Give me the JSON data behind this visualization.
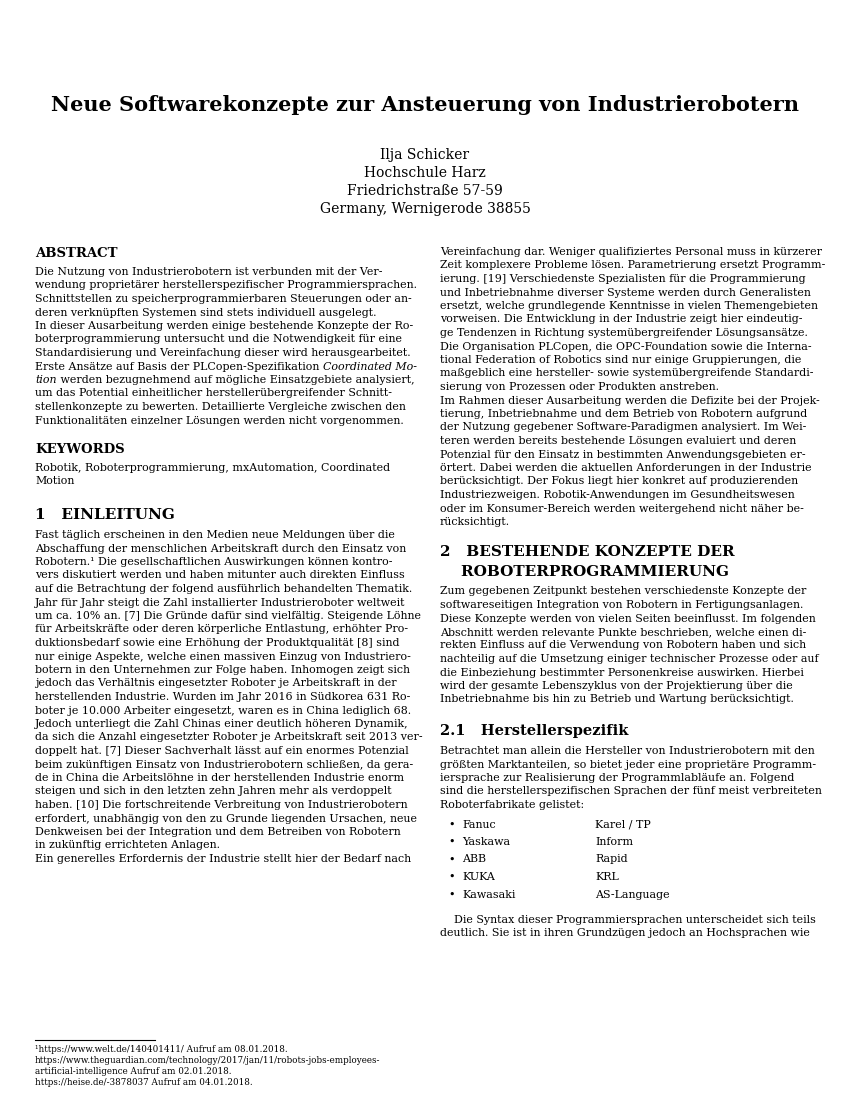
{
  "title": "Neue Softwarekonzepte zur Ansteuerung von Industrierobotern",
  "author_lines": [
    "Ilja Schicker",
    "Hochschule Harz",
    "Friedrichstraße 57-59",
    "Germany, Wernigerode 38855"
  ],
  "background_color": "#ffffff",
  "text_color": "#000000",
  "abstract_heading": "ABSTRACT",
  "left_abstract_lines": [
    "Die Nutzung von Industrierobotern ist verbunden mit der Ver-",
    "wendung proprietärer herstellerspezifischer Programmiersprachen.",
    "Schnittstellen zu speicherprogrammierbaren Steuerungen oder an-",
    "deren verknüpften Systemen sind stets individuell ausgelegt.",
    "In dieser Ausarbeitung werden einige bestehende Konzepte der Ro-",
    "boterprogrammierung untersucht und die Notwendigkeit für eine",
    "Standardisierung und Vereinfachung dieser wird herausgearbeitet.",
    "Erste Ansätze auf Basis der PLCopen-Spezifikation |Coordinated Mo-|",
    "|tion| werden bezugnehmend auf mögliche Einsatzgebiete analysiert,",
    "um das Potential einheitlicher herstellerübergreifender Schnitt-",
    "stellenkonzepte zu bewerten. Detaillierte Vergleiche zwischen den",
    "Funktionalitäten einzelner Lösungen werden nicht vorgenommen."
  ],
  "keywords_heading": "KEYWORDS",
  "keywords_lines": [
    "Robotik, Roboterprogrammierung, mxAutomation, Coordinated",
    "Motion"
  ],
  "section1_heading": "1   EINLEITUNG",
  "section1_lines": [
    "Fast täglich erscheinen in den Medien neue Meldungen über die",
    "Abschaffung der menschlichen Arbeitskraft durch den Einsatz von",
    "Robotern.¹ Die gesellschaftlichen Auswirkungen können kontro-",
    "vers diskutiert werden und haben mitunter auch direkten Einfluss",
    "auf die Betrachtung der folgend ausführlich behandelten Thematik.",
    "Jahr für Jahr steigt die Zahl installierter Industrieroboter weltweit",
    "um ca. 10% an. [7] Die Gründe dafür sind vielfältig. Steigende Löhne",
    "für Arbeitskräfte oder deren körperliche Entlastung, erhöhter Pro-",
    "duktionsbedarf sowie eine Erhöhung der Produktqualität [8] sind",
    "nur einige Aspekte, welche einen massiven Einzug von Industriero-",
    "botern in den Unternehmen zur Folge haben. Inhomogen zeigt sich",
    "jedoch das Verhältnis eingesetzter Roboter je Arbeitskraft in der",
    "herstellenden Industrie. Wurden im Jahr 2016 in Südkorea 631 Ro-",
    "boter je 10.000 Arbeiter eingesetzt, waren es in China lediglich 68.",
    "Jedoch unterliegt die Zahl Chinas einer deutlich höheren Dynamik,",
    "da sich die Anzahl eingesetzter Roboter je Arbeitskraft seit 2013 ver-",
    "doppelt hat. [7] Dieser Sachverhalt lässt auf ein enormes Potenzial",
    "beim zukünftigen Einsatz von Industrierobotern schließen, da gera-",
    "de in China die Arbeitslöhne in der herstellenden Industrie enorm",
    "steigen und sich in den letzten zehn Jahren mehr als verdoppelt",
    "haben. [10] Die fortschreitende Verbreitung von Industrierobotern",
    "erfordert, unabhängig von den zu Grunde liegenden Ursachen, neue",
    "Denkweisen bei der Integration und dem Betreiben von Robotern",
    "in zukünftig errichteten Anlagen.",
    "Ein generelles Erfordernis der Industrie stellt hier der Bedarf nach"
  ],
  "footnote_lines": [
    "¹https://www.welt.de/140401411/ Aufruf am 08.01.2018.",
    "https://www.theguardian.com/technology/2017/jan/11/robots-jobs-employees-",
    "artificial-intelligence Aufruf am 02.01.2018.",
    "https://heise.de/-3878037 Aufruf am 04.01.2018."
  ],
  "right_col1_lines": [
    "Vereinfachung dar. Weniger qualifiziertes Personal muss in kürzerer",
    "Zeit komplexere Probleme lösen. Parametrierung ersetzt Programm-",
    "ierung. [19] Verschiedenste Spezialisten für die Programmierung",
    "und Inbetriebnahme diverser Systeme werden durch Generalisten",
    "ersetzt, welche grundlegende Kenntnisse in vielen Themengebieten",
    "vorweisen. Die Entwicklung in der Industrie zeigt hier eindeutig-",
    "ge Tendenzen in Richtung systemübergreifender Lösungsansätze.",
    "Die Organisation PLCopen, die OPC-Foundation sowie die Interna-",
    "tional Federation of Robotics sind nur einige Gruppierungen, die",
    "maßgeblich eine hersteller- sowie systemübergreifende Standardi-",
    "sierung von Prozessen oder Produkten anstreben.",
    "Im Rahmen dieser Ausarbeitung werden die Defizite bei der Projek-",
    "tierung, Inbetriebnahme und dem Betrieb von Robotern aufgrund",
    "der Nutzung gegebener Software-Paradigmen analysiert. Im Wei-",
    "teren werden bereits bestehende Lösungen evaluiert und deren",
    "Potenzial für den Einsatz in bestimmten Anwendungsgebieten er-",
    "örtert. Dabei werden die aktuellen Anforderungen in der Industrie",
    "berücksichtigt. Der Fokus liegt hier konkret auf produzierenden",
    "Industriezweigen. Robotik-Anwendungen im Gesundheitswesen",
    "oder im Konsumer-Bereich werden weitergehend nicht näher be-",
    "rücksichtigt."
  ],
  "section2_heading_line1": "2   BESTEHENDE KONZEPTE DER",
  "section2_heading_line2": "    ROBOTERPROGRAMMIERUNG",
  "section2_lines": [
    "Zum gegebenen Zeitpunkt bestehen verschiedenste Konzepte der",
    "softwareseitigen Integration von Robotern in Fertigungsanlagen.",
    "Diese Konzepte werden von vielen Seiten beeinflusst. Im folgenden",
    "Abschnitt werden relevante Punkte beschrieben, welche einen di-",
    "rekten Einfluss auf die Verwendung von Robotern haben und sich",
    "nachteilig auf die Umsetzung einiger technischer Prozesse oder auf",
    "die Einbeziehung bestimmter Personenkreise auswirken. Hierbei",
    "wird der gesamte Lebenszyklus von der Projektierung über die",
    "Inbetriebnahme bis hin zu Betrieb und Wartung berücksichtigt."
  ],
  "section21_heading": "2.1   Herstellerspezifik",
  "section21_lines": [
    "Betrachtet man allein die Hersteller von Industrierobotern mit den",
    "größten Marktanteilen, so bietet jeder eine proprietäre Programm-",
    "iersprache zur Realisierung der Programmlabläufe an. Folgend",
    "sind die herstellerspezifischen Sprachen der fünf meist verbreiteten",
    "Roboterfabrikate gelistet:"
  ],
  "bullet_items": [
    [
      "Fanuc",
      "Karel / TP"
    ],
    [
      "Yaskawa",
      "Inform"
    ],
    [
      "ABB",
      "Rapid"
    ],
    [
      "KUKA",
      "KRL"
    ],
    [
      "Kawasaki",
      "AS-Language"
    ]
  ],
  "section21_end_lines": [
    "    Die Syntax dieser Programmiersprachen unterscheidet sich teils",
    "deutlich. Sie ist in ihren Grundzügen jedoch an Hochsprachen wie"
  ]
}
